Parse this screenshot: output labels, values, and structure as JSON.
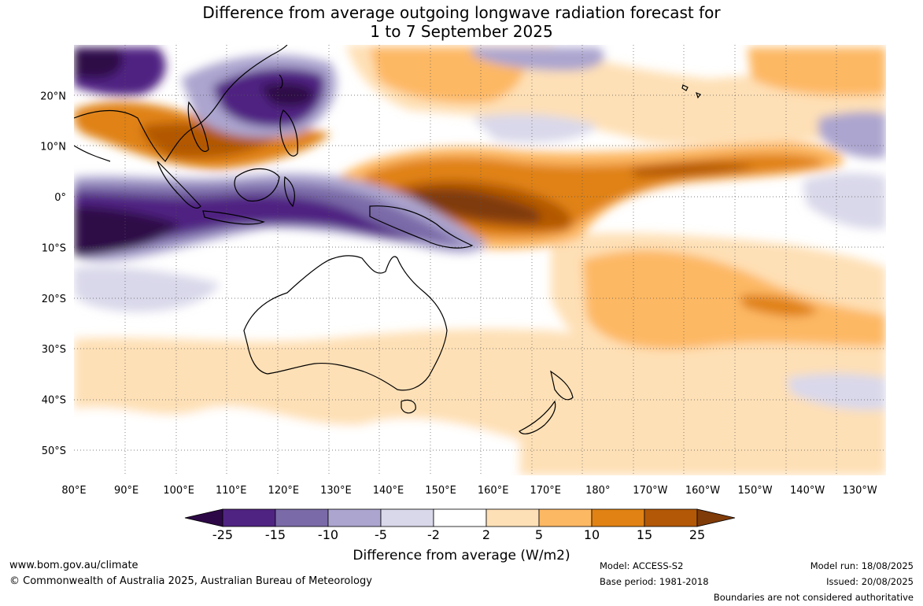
{
  "title": {
    "line1": "Difference from average outgoing longwave radiation forecast for",
    "line2": "1 to 7 September 2025"
  },
  "map": {
    "lon_labels": [
      "80°E",
      "90°E",
      "100°E",
      "110°E",
      "120°E",
      "130°E",
      "140°E",
      "150°E",
      "160°E",
      "170°E",
      "180°",
      "170°W",
      "160°W",
      "150°W",
      "140°W",
      "130°W"
    ],
    "lat_labels": [
      "20°N",
      "10°N",
      "0°",
      "10°S",
      "20°S",
      "30°S",
      "40°S",
      "50°S"
    ],
    "lon_range": [
      80,
      235
    ],
    "lat_range": [
      -55,
      30
    ]
  },
  "colorbar": {
    "ticks": [
      "-25",
      "-15",
      "-10",
      "-5",
      "-2",
      "2",
      "5",
      "10",
      "15",
      "25"
    ],
    "colors": [
      "#2d0846",
      "#4f2382",
      "#7a6aa8",
      "#aca5cf",
      "#d9d8ea",
      "#ffffff",
      "#fee0b6",
      "#fdb863",
      "#e08214",
      "#b35806",
      "#7f3b08"
    ],
    "label": "Difference from average (W/m2)"
  },
  "footer": {
    "website": "www.bom.gov.au/climate",
    "copyright": "© Commonwealth of Australia 2025, Australian Bureau of Meteorology",
    "model": "Model: ACCESS-S2",
    "base_period": "Base period: 1981-2018",
    "model_run": "Model run: 18/08/2025",
    "issued": "Issued: 20/08/2025",
    "disclaimer": "Boundaries are not considered authoritative"
  }
}
